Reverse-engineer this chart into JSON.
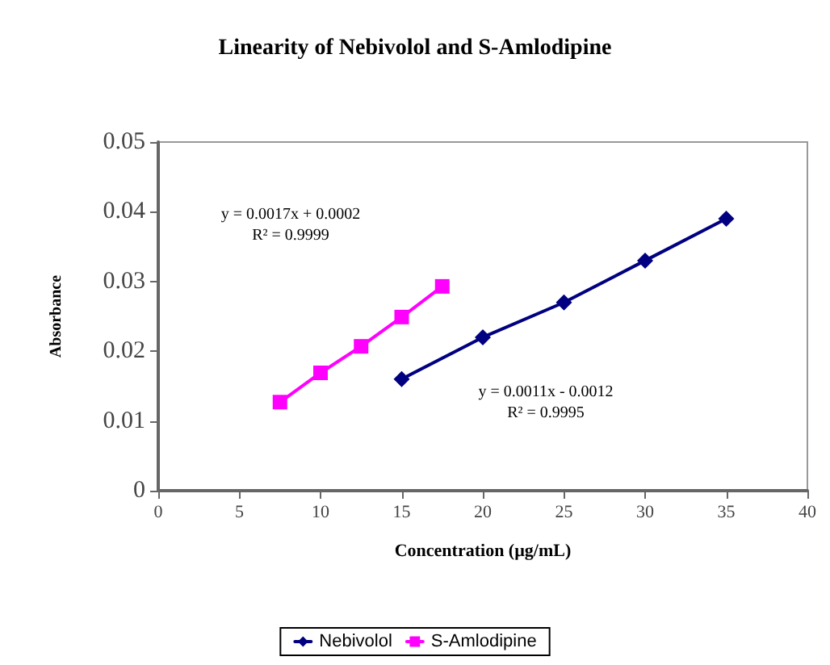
{
  "chart_data": {
    "type": "line",
    "title": "Linearity of Nebivolol and S-Amlodipine",
    "xlabel": "Concentration (µg/mL)",
    "ylabel": "Absorbance",
    "series": [
      {
        "name": "Nebivolol",
        "color": "#000080",
        "marker": "diamond",
        "x": [
          15,
          20,
          25,
          30,
          35
        ],
        "values": [
          0.016,
          0.022,
          0.027,
          0.033,
          0.039
        ]
      },
      {
        "name": "S-Amlodipine",
        "color": "#ff00ff",
        "marker": "square",
        "x": [
          7.5,
          10,
          12.5,
          15,
          17.5
        ],
        "values": [
          0.0127,
          0.0169,
          0.0207,
          0.0249,
          0.0293
        ]
      }
    ],
    "annotations": [
      "y = 0.0017x + 0.0002",
      "R² = 0.9999",
      "y = 0.0011x - 0.0012",
      "R² = 0.9995"
    ],
    "xlim": [
      0,
      40
    ],
    "xticks": [
      0,
      5,
      10,
      15,
      20,
      25,
      30,
      35,
      40
    ],
    "ylim": [
      0,
      0.05
    ],
    "yticks": [
      0,
      0.01,
      0.02,
      0.03,
      0.04,
      0.05
    ],
    "grid": false,
    "legend": "bottom",
    "line_style": "solid"
  }
}
